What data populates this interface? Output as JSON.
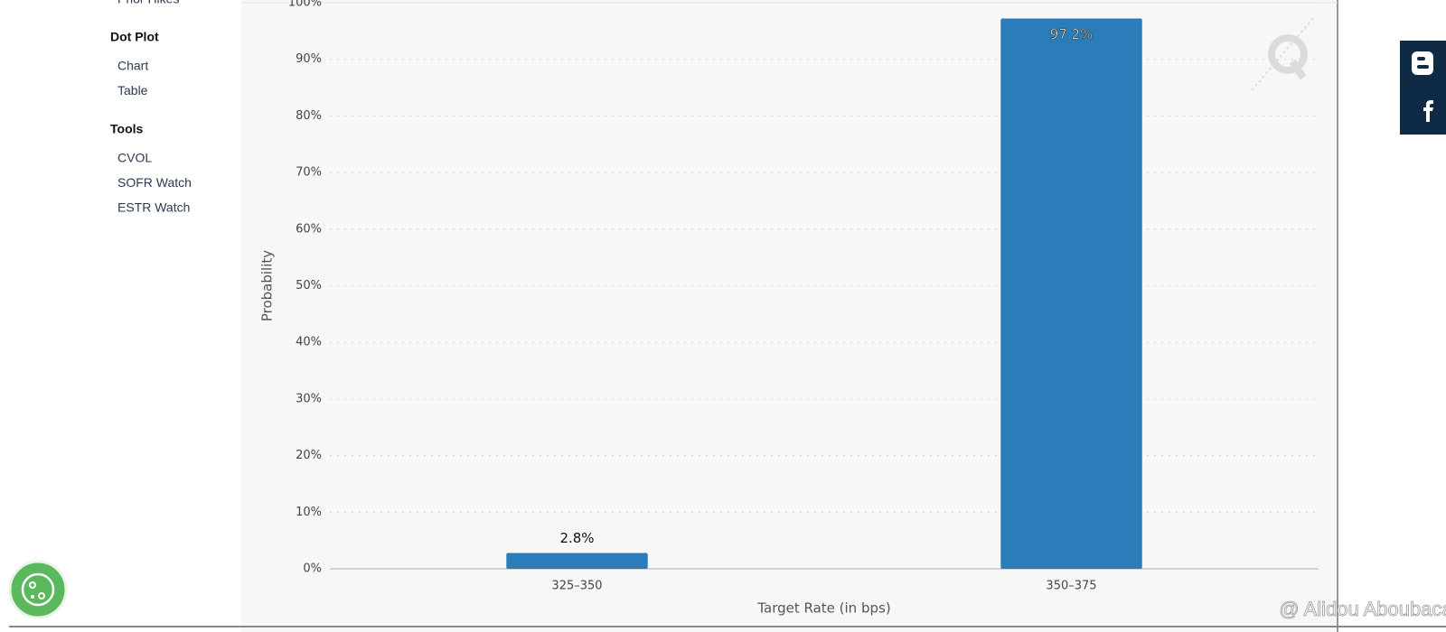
{
  "sidebar": {
    "partial_item": "Prior Hikes",
    "sections": [
      {
        "title": "Dot Plot",
        "items": [
          "Chart",
          "Table"
        ]
      },
      {
        "title": "Tools",
        "items": [
          "CVOL",
          "SOFR Watch",
          "ESTR Watch"
        ]
      }
    ]
  },
  "watermark": "@ Alidou Aboubacar",
  "chart_data": {
    "type": "bar",
    "categories": [
      "325–350",
      "350–375"
    ],
    "values": [
      2.8,
      97.2
    ],
    "value_labels": [
      "2.8%",
      "97.2%"
    ],
    "color": "#2a7db8",
    "xlabel": "Target Rate (in bps)",
    "ylabel": "Probability",
    "ylim": [
      0,
      100
    ],
    "yticks": [
      {
        "value": 0,
        "label": "0%"
      },
      {
        "value": 10,
        "label": "10%"
      },
      {
        "value": 20,
        "label": "20%"
      },
      {
        "value": 30,
        "label": "30%"
      },
      {
        "value": 40,
        "label": "40%"
      },
      {
        "value": 50,
        "label": "50%"
      },
      {
        "value": 60,
        "label": "60%"
      },
      {
        "value": 70,
        "label": "70%"
      },
      {
        "value": 80,
        "label": "80%"
      },
      {
        "value": 90,
        "label": "90%"
      },
      {
        "value": 100,
        "label": "100%"
      }
    ],
    "grid": true
  }
}
